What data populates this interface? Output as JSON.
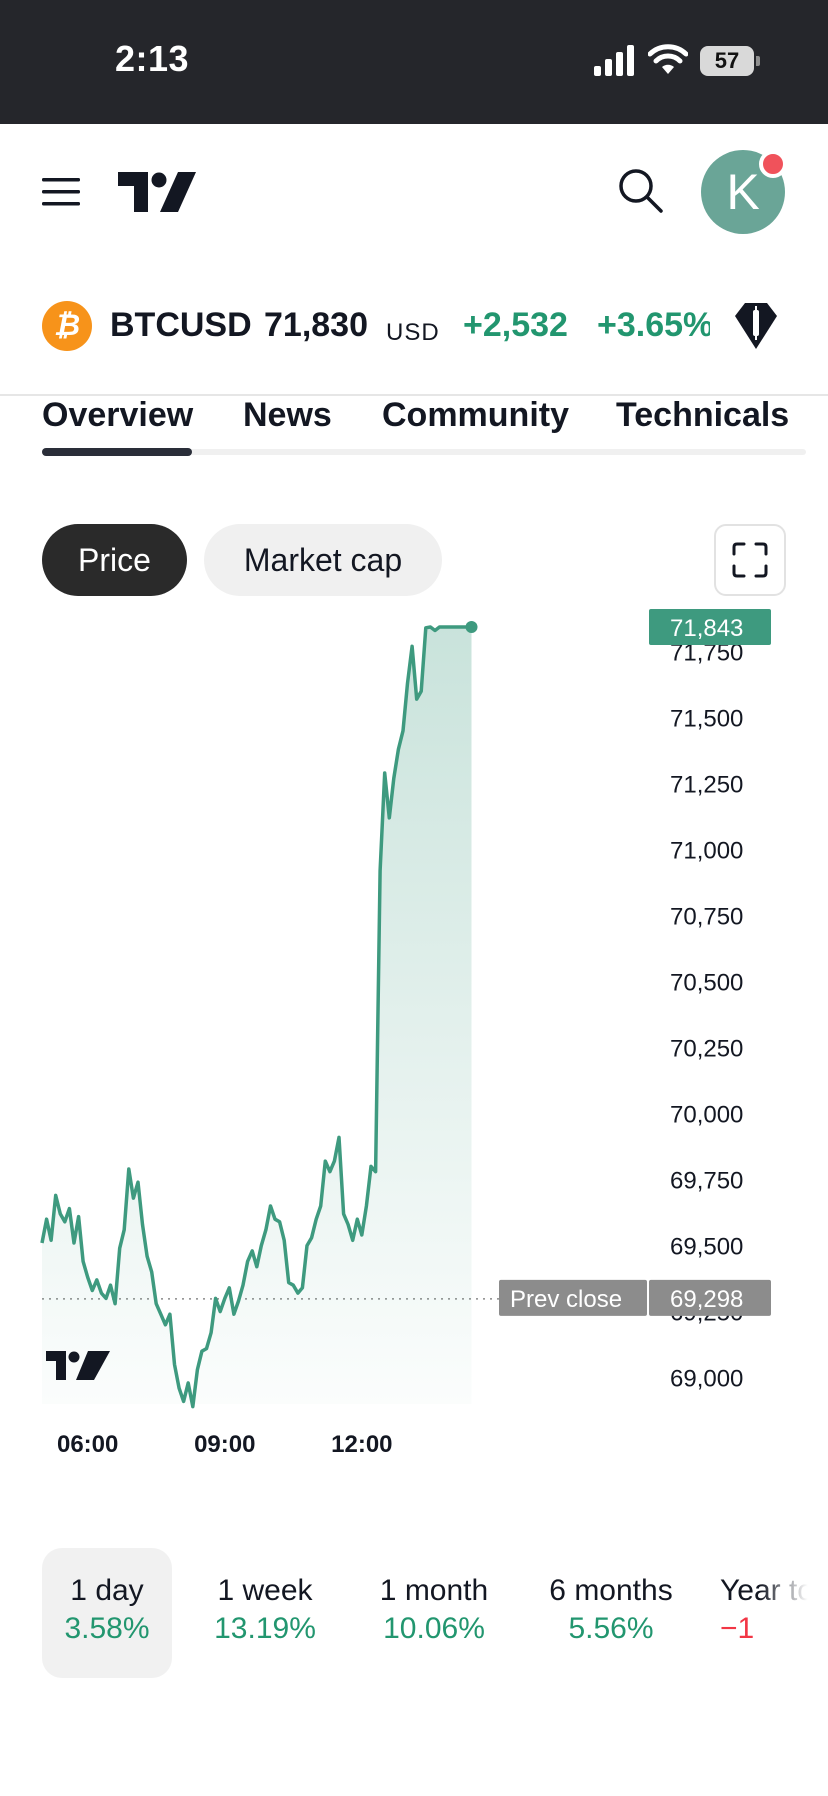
{
  "status_bar": {
    "time": "2:13",
    "battery": "57",
    "icons": [
      "cellular-signal-icon",
      "wifi-icon",
      "battery-icon"
    ]
  },
  "header": {
    "logo_icon": "tradingview-logo",
    "search_icon": "search-icon",
    "menu_icon": "hamburger-menu-icon",
    "avatar_letter": "K",
    "avatar_color": "#6aa597",
    "notification_color": "#f0525b"
  },
  "ticker": {
    "coin_glyph": "₿",
    "symbol": "BTCUSD",
    "price": "71,830",
    "currency": "USD",
    "change_abs": "+2,532",
    "change_pct": "+3.65%",
    "badge_icon": "candlestick-gem-icon",
    "positive_color": "#22966f"
  },
  "tabs": [
    {
      "label": "Overview",
      "active": true
    },
    {
      "label": "News",
      "active": false
    },
    {
      "label": "Community",
      "active": false
    },
    {
      "label": "Technicals",
      "active": false
    }
  ],
  "chart_toggle": {
    "price_label": "Price",
    "market_cap_label": "Market cap",
    "selected": "Price",
    "fullscreen_icon": "fullscreen-icon"
  },
  "chart_data": {
    "type": "area",
    "title": "",
    "xlabel": "",
    "ylabel": "",
    "x_ticks": [
      "06:00",
      "09:00",
      "12:00"
    ],
    "y_ticks": [
      69000,
      69250,
      69500,
      69750,
      70000,
      70250,
      70500,
      70750,
      71000,
      71250,
      71500,
      71750
    ],
    "y_tick_labels": [
      "69,000",
      "69,250",
      "69,500",
      "69,750",
      "70,000",
      "70,250",
      "70,500",
      "70,750",
      "71,000",
      "71,250",
      "71,500",
      "71,750"
    ],
    "ylim": [
      68900,
      71900
    ],
    "xlim": [
      "05:00",
      "18:00"
    ],
    "last_price": 71843,
    "last_price_label": "71,843",
    "prev_close": 69298,
    "prev_close_value_label": "69,298",
    "prev_close_label": "Prev close",
    "line_color": "#3e9a7f",
    "series": [
      {
        "x": [
          "05:00",
          "05:06",
          "05:12",
          "05:18",
          "05:24",
          "05:30",
          "05:36",
          "05:42",
          "05:48",
          "05:54",
          "06:00",
          "06:06",
          "06:12",
          "06:18",
          "06:24",
          "06:30",
          "06:36",
          "06:42",
          "06:48",
          "06:54",
          "07:00",
          "07:06",
          "07:12",
          "07:18",
          "07:24",
          "07:30",
          "07:36",
          "07:42",
          "07:48",
          "07:54",
          "08:00",
          "08:06",
          "08:12",
          "08:18",
          "08:24",
          "08:30",
          "08:36",
          "08:42",
          "08:48",
          "08:54",
          "09:00",
          "09:06",
          "09:12",
          "09:18",
          "09:24",
          "09:30",
          "09:36",
          "09:42",
          "09:48",
          "09:54",
          "10:00",
          "10:06",
          "10:12",
          "10:18",
          "10:24",
          "10:30",
          "10:36",
          "10:42",
          "10:48",
          "10:54",
          "11:00",
          "11:06",
          "11:12",
          "11:18",
          "11:24",
          "11:30",
          "11:36",
          "11:42",
          "11:48",
          "11:54",
          "12:00",
          "12:06",
          "12:12",
          "12:18",
          "12:24",
          "12:30",
          "12:36",
          "12:42",
          "12:48",
          "12:54",
          "13:00",
          "13:06",
          "13:12",
          "13:18",
          "13:24",
          "13:30",
          "13:36",
          "13:42",
          "13:48",
          "13:54",
          "14:00",
          "14:06",
          "14:12",
          "14:18",
          "14:24"
        ],
        "values": [
          69510,
          69600,
          69520,
          69690,
          69620,
          69590,
          69640,
          69510,
          69610,
          69440,
          69380,
          69330,
          69370,
          69320,
          69300,
          69350,
          69280,
          69490,
          69560,
          69790,
          69680,
          69740,
          69580,
          69460,
          69400,
          69280,
          69240,
          69200,
          69240,
          69050,
          68960,
          68910,
          68980,
          68890,
          69030,
          69100,
          69110,
          69170,
          69300,
          69250,
          69300,
          69340,
          69240,
          69290,
          69350,
          69440,
          69480,
          69420,
          69500,
          69560,
          69650,
          69600,
          69590,
          69520,
          69360,
          69350,
          69320,
          69340,
          69500,
          69530,
          69600,
          69650,
          69820,
          69780,
          69820,
          69910,
          69620,
          69580,
          69520,
          69600,
          69540,
          69650,
          69800,
          69780,
          70920,
          71290,
          71120,
          71270,
          71380,
          71450,
          71630,
          71770,
          71570,
          71600,
          71840,
          71843,
          71830,
          71843,
          71843,
          71843,
          71843,
          71843,
          71843,
          71843,
          71843
        ]
      }
    ]
  },
  "periods": [
    {
      "label": "1 day",
      "value": "3.58%",
      "active": true,
      "negative": false
    },
    {
      "label": "1 week",
      "value": "13.19%",
      "active": false,
      "negative": false
    },
    {
      "label": "1 month",
      "value": "10.06%",
      "active": false,
      "negative": false
    },
    {
      "label": "6 months",
      "value": "5.56%",
      "active": false,
      "negative": false
    },
    {
      "label": "Year to date",
      "value": "−1",
      "active": false,
      "negative": true
    }
  ]
}
